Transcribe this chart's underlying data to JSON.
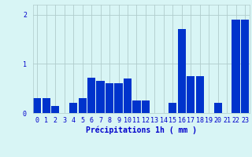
{
  "hours": [
    0,
    1,
    2,
    3,
    4,
    5,
    6,
    7,
    8,
    9,
    10,
    11,
    12,
    13,
    14,
    15,
    16,
    17,
    18,
    19,
    20,
    21,
    22,
    23
  ],
  "values": [
    0.3,
    0.3,
    0.15,
    0.0,
    0.2,
    0.3,
    0.72,
    0.65,
    0.6,
    0.6,
    0.7,
    0.25,
    0.25,
    0.0,
    0.0,
    0.2,
    1.7,
    0.75,
    0.75,
    0.0,
    0.2,
    0.0,
    1.9,
    1.9
  ],
  "bar_color": "#0033cc",
  "bg_color": "#d8f5f5",
  "grid_color": "#b0cccc",
  "text_color": "#0000cc",
  "xlabel": "Précipitations 1h ( mm )",
  "ylim": [
    0,
    2.2
  ],
  "yticks": [
    0,
    1,
    2
  ],
  "label_fontsize": 7,
  "tick_fontsize": 6
}
